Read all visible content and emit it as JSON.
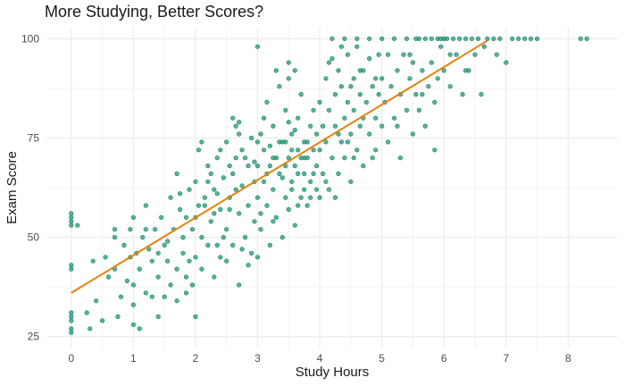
{
  "chart_data": {
    "type": "scatter",
    "title": "More Studying, Better Scores?",
    "xlabel": "Study Hours",
    "ylabel": "Exam Score",
    "xlim": [
      -0.4,
      8.8
    ],
    "ylim": [
      22,
      103
    ],
    "x_ticks": [
      0,
      1,
      2,
      3,
      4,
      5,
      6,
      7,
      8
    ],
    "y_ticks": [
      25,
      50,
      75,
      100
    ],
    "grid": true,
    "colors": {
      "points": "#1b9e77",
      "point_stroke": "#137a5c",
      "trend": "#e6820e",
      "grid": "#ebebeb"
    },
    "trend_line": {
      "x": [
        0,
        6.7
      ],
      "y": [
        36,
        99.5
      ]
    },
    "series": [
      {
        "points": [
          [
            0.0,
            26
          ],
          [
            0.0,
            27
          ],
          [
            0.0,
            29
          ],
          [
            0.0,
            30
          ],
          [
            0.0,
            31
          ],
          [
            0.0,
            42
          ],
          [
            0.0,
            43
          ],
          [
            0.0,
            53
          ],
          [
            0.0,
            54
          ],
          [
            0.0,
            55
          ],
          [
            0.0,
            56
          ],
          [
            0.1,
            53
          ],
          [
            0.25,
            31
          ],
          [
            0.3,
            27
          ],
          [
            0.35,
            44
          ],
          [
            0.4,
            34
          ],
          [
            0.5,
            29
          ],
          [
            0.55,
            45
          ],
          [
            0.6,
            40
          ],
          [
            0.7,
            50
          ],
          [
            0.7,
            42
          ],
          [
            0.7,
            52
          ],
          [
            0.75,
            30
          ],
          [
            0.8,
            35
          ],
          [
            0.85,
            48
          ],
          [
            0.9,
            39
          ],
          [
            0.95,
            52
          ],
          [
            0.95,
            45
          ],
          [
            1.0,
            28
          ],
          [
            1.0,
            33
          ],
          [
            1.0,
            38
          ],
          [
            1.05,
            46
          ],
          [
            1.0,
            55
          ],
          [
            1.1,
            27
          ],
          [
            1.1,
            42
          ],
          [
            1.15,
            50
          ],
          [
            1.2,
            36
          ],
          [
            1.2,
            58
          ],
          [
            1.25,
            47
          ],
          [
            1.3,
            35
          ],
          [
            1.3,
            44
          ],
          [
            1.35,
            52
          ],
          [
            1.4,
            30
          ],
          [
            1.4,
            40
          ],
          [
            1.45,
            55
          ],
          [
            1.5,
            48
          ],
          [
            1.5,
            35
          ],
          [
            1.55,
            44
          ],
          [
            1.6,
            38
          ],
          [
            1.6,
            60
          ],
          [
            1.65,
            52
          ],
          [
            1.7,
            42
          ],
          [
            1.7,
            34
          ],
          [
            1.75,
            57
          ],
          [
            1.8,
            46
          ],
          [
            1.8,
            50
          ],
          [
            1.85,
            40
          ],
          [
            1.9,
            62
          ],
          [
            1.9,
            44
          ],
          [
            1.95,
            52
          ],
          [
            1.95,
            38
          ],
          [
            1.7,
            66
          ],
          [
            1.75,
            61
          ],
          [
            1.85,
            55
          ],
          [
            1.85,
            36
          ],
          [
            1.2,
            52
          ],
          [
            1.55,
            49
          ],
          [
            1.4,
            46
          ],
          [
            2.0,
            30
          ],
          [
            2.0,
            45
          ],
          [
            2.0,
            55
          ],
          [
            2.0,
            64
          ],
          [
            2.05,
            72
          ],
          [
            2.1,
            50
          ],
          [
            2.1,
            42
          ],
          [
            2.15,
            60
          ],
          [
            2.2,
            68
          ],
          [
            2.2,
            48
          ],
          [
            2.25,
            54
          ],
          [
            2.3,
            62
          ],
          [
            2.3,
            40
          ],
          [
            2.35,
            70
          ],
          [
            2.4,
            57
          ],
          [
            2.4,
            45
          ],
          [
            2.45,
            65
          ],
          [
            2.5,
            74
          ],
          [
            2.5,
            52
          ],
          [
            2.55,
            60
          ],
          [
            2.6,
            48
          ],
          [
            2.6,
            66
          ],
          [
            2.65,
            78
          ],
          [
            2.7,
            56
          ],
          [
            2.7,
            38
          ],
          [
            2.75,
            63
          ],
          [
            2.8,
            70
          ],
          [
            2.8,
            50
          ],
          [
            2.85,
            58
          ],
          [
            2.9,
            75
          ],
          [
            2.9,
            46
          ],
          [
            2.95,
            64
          ],
          [
            2.95,
            54
          ],
          [
            2.6,
            80
          ],
          [
            2.7,
            79
          ],
          [
            2.7,
            76
          ],
          [
            2.1,
            74
          ],
          [
            2.15,
            58
          ],
          [
            2.25,
            66
          ],
          [
            2.35,
            61
          ],
          [
            2.45,
            50
          ],
          [
            2.55,
            57
          ],
          [
            2.4,
            72
          ],
          [
            2.3,
            56
          ],
          [
            2.5,
            44
          ],
          [
            2.65,
            62
          ],
          [
            2.75,
            47
          ],
          [
            2.85,
            68
          ],
          [
            2.2,
            64
          ],
          [
            2.35,
            48
          ],
          [
            2.55,
            68
          ],
          [
            2.65,
            70
          ],
          [
            2.75,
            72
          ],
          [
            2.85,
            43
          ],
          [
            2.95,
            69
          ],
          [
            2.05,
            58
          ],
          [
            3.0,
            45
          ],
          [
            3.0,
            60
          ],
          [
            3.0,
            68
          ],
          [
            3.0,
            98
          ],
          [
            3.05,
            52
          ],
          [
            3.05,
            76
          ],
          [
            3.1,
            64
          ],
          [
            3.1,
            72
          ],
          [
            3.15,
            58
          ],
          [
            3.15,
            84
          ],
          [
            3.2,
            48
          ],
          [
            3.2,
            68
          ],
          [
            3.25,
            62
          ],
          [
            3.25,
            78
          ],
          [
            3.3,
            55
          ],
          [
            3.3,
            70
          ],
          [
            3.35,
            66
          ],
          [
            3.35,
            88
          ],
          [
            3.4,
            50
          ],
          [
            3.4,
            74
          ],
          [
            3.45,
            60
          ],
          [
            3.45,
            82
          ],
          [
            3.5,
            57
          ],
          [
            3.5,
            70
          ],
          [
            3.5,
            90
          ],
          [
            3.55,
            64
          ],
          [
            3.55,
            76
          ],
          [
            3.6,
            53
          ],
          [
            3.6,
            68
          ],
          [
            3.65,
            72
          ],
          [
            3.65,
            80
          ],
          [
            3.7,
            60
          ],
          [
            3.7,
            86
          ],
          [
            3.75,
            66
          ],
          [
            3.75,
            74
          ],
          [
            3.8,
            58
          ],
          [
            3.8,
            70
          ],
          [
            3.85,
            78
          ],
          [
            3.85,
            64
          ],
          [
            3.9,
            82
          ],
          [
            3.9,
            72
          ],
          [
            3.95,
            68
          ],
          [
            3.95,
            76
          ],
          [
            3.5,
            94
          ],
          [
            3.3,
            92
          ],
          [
            3.6,
            92
          ],
          [
            3.2,
            73
          ],
          [
            3.4,
            65
          ],
          [
            3.55,
            62
          ],
          [
            3.65,
            58
          ],
          [
            3.75,
            62
          ],
          [
            3.35,
            74
          ],
          [
            3.45,
            68
          ],
          [
            3.25,
            70
          ],
          [
            3.1,
            80
          ],
          [
            3.0,
            74
          ],
          [
            3.15,
            66
          ],
          [
            3.5,
            79
          ],
          [
            3.6,
            77
          ],
          [
            3.7,
            70
          ],
          [
            3.8,
            74
          ],
          [
            3.9,
            66
          ],
          [
            3.05,
            56
          ],
          [
            3.25,
            54
          ],
          [
            3.45,
            74
          ],
          [
            3.55,
            72
          ],
          [
            3.65,
            66
          ],
          [
            3.75,
            70
          ],
          [
            3.85,
            60
          ],
          [
            3.95,
            62
          ],
          [
            4.0,
            60
          ],
          [
            4.0,
            72
          ],
          [
            4.0,
            84
          ],
          [
            4.05,
            66
          ],
          [
            4.05,
            78
          ],
          [
            4.1,
            90
          ],
          [
            4.1,
            74
          ],
          [
            4.15,
            62
          ],
          [
            4.15,
            82
          ],
          [
            4.2,
            70
          ],
          [
            4.2,
            95
          ],
          [
            4.25,
            78
          ],
          [
            4.25,
            86
          ],
          [
            4.3,
            66
          ],
          [
            4.3,
            92
          ],
          [
            4.35,
            74
          ],
          [
            4.35,
            88
          ],
          [
            4.4,
            80
          ],
          [
            4.4,
            70
          ],
          [
            4.45,
            96
          ],
          [
            4.45,
            84
          ],
          [
            4.5,
            76
          ],
          [
            4.5,
            64
          ],
          [
            4.55,
            90
          ],
          [
            4.55,
            82
          ],
          [
            4.6,
            72
          ],
          [
            4.6,
            98
          ],
          [
            4.65,
            86
          ],
          [
            4.65,
            78
          ],
          [
            4.7,
            92
          ],
          [
            4.7,
            68
          ],
          [
            4.75,
            84
          ],
          [
            4.8,
            76
          ],
          [
            4.8,
            95
          ],
          [
            4.85,
            88
          ],
          [
            4.9,
            80
          ],
          [
            4.9,
            72
          ],
          [
            4.95,
            96
          ],
          [
            4.95,
            86
          ],
          [
            4.2,
            100
          ],
          [
            4.4,
            100
          ],
          [
            4.6,
            100
          ],
          [
            4.8,
            100
          ],
          [
            4.1,
            64
          ],
          [
            4.3,
            76
          ],
          [
            4.5,
            88
          ],
          [
            4.7,
            80
          ],
          [
            4.9,
            90
          ],
          [
            4.25,
            60
          ],
          [
            4.45,
            74
          ],
          [
            4.65,
            92
          ],
          [
            4.85,
            70
          ],
          [
            4.15,
            94
          ],
          [
            4.35,
            98
          ],
          [
            4.55,
            70
          ],
          [
            5.0,
            78
          ],
          [
            5.0,
            90
          ],
          [
            5.0,
            100
          ],
          [
            5.05,
            84
          ],
          [
            5.1,
            96
          ],
          [
            5.1,
            74
          ],
          [
            5.15,
            88
          ],
          [
            5.2,
            80
          ],
          [
            5.2,
            100
          ],
          [
            5.25,
            92
          ],
          [
            5.3,
            70
          ],
          [
            5.3,
            86
          ],
          [
            5.35,
            96
          ],
          [
            5.4,
            82
          ],
          [
            5.4,
            100
          ],
          [
            5.45,
            90
          ],
          [
            5.5,
            76
          ],
          [
            5.5,
            94
          ],
          [
            5.55,
            86
          ],
          [
            5.6,
            100
          ],
          [
            5.6,
            82
          ],
          [
            5.65,
            92
          ],
          [
            5.7,
            100
          ],
          [
            5.7,
            78
          ],
          [
            5.75,
            88
          ],
          [
            5.8,
            100
          ],
          [
            5.8,
            94
          ],
          [
            5.85,
            84
          ],
          [
            5.9,
            100
          ],
          [
            5.9,
            90
          ],
          [
            5.95,
            98
          ],
          [
            5.95,
            100
          ],
          [
            5.25,
            78
          ],
          [
            5.45,
            96
          ],
          [
            5.65,
            86
          ],
          [
            5.85,
            72
          ],
          [
            5.55,
            100
          ],
          [
            6.0,
            100
          ],
          [
            6.0,
            92
          ],
          [
            6.05,
            100
          ],
          [
            6.1,
            88
          ],
          [
            6.15,
            100
          ],
          [
            6.2,
            96
          ],
          [
            6.25,
            100
          ],
          [
            6.3,
            86
          ],
          [
            6.35,
            100
          ],
          [
            6.4,
            92
          ],
          [
            6.45,
            100
          ],
          [
            6.5,
            96
          ],
          [
            6.55,
            100
          ],
          [
            6.6,
            86
          ],
          [
            6.7,
            100
          ],
          [
            6.8,
            100
          ],
          [
            6.9,
            100
          ],
          [
            7.0,
            94
          ],
          [
            7.1,
            100
          ],
          [
            7.2,
            100
          ],
          [
            7.3,
            100
          ],
          [
            7.4,
            100
          ],
          [
            7.5,
            100
          ],
          [
            8.2,
            100
          ],
          [
            8.3,
            100
          ],
          [
            6.1,
            96
          ],
          [
            6.35,
            92
          ],
          [
            6.65,
            98
          ],
          [
            6.85,
            96
          ]
        ]
      }
    ]
  }
}
